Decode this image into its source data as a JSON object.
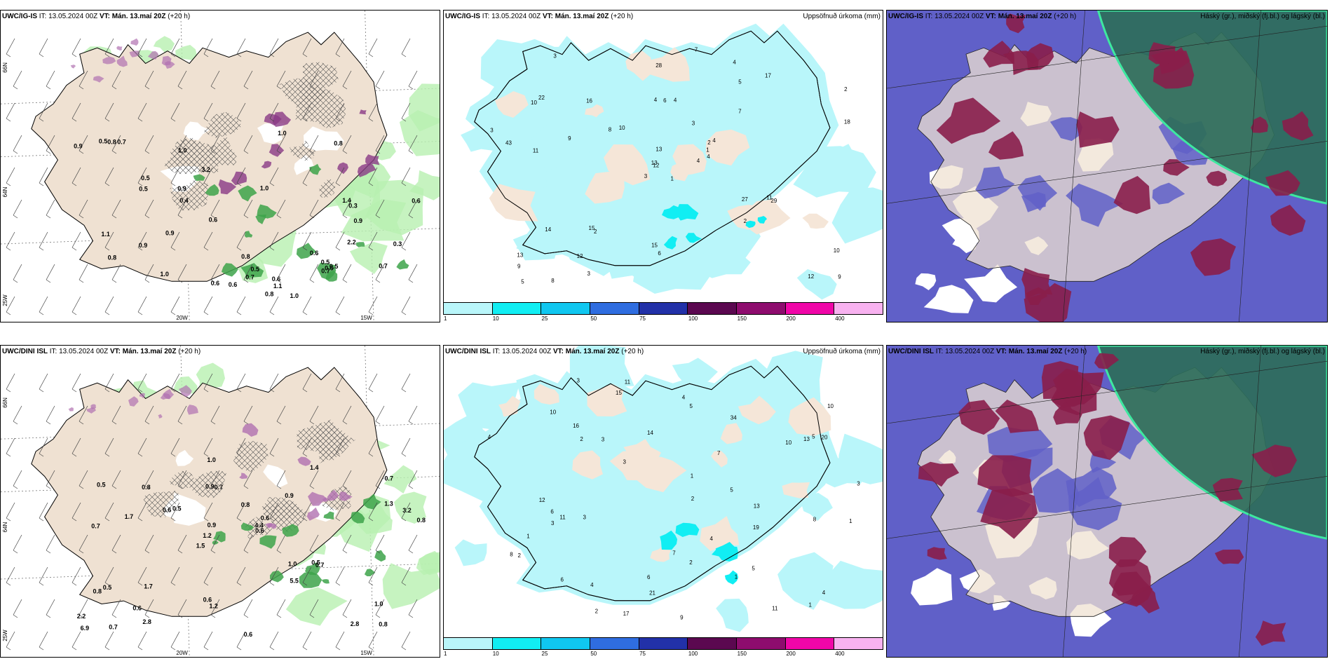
{
  "rows": [
    {
      "panels": [
        {
          "model": "UWC/IG-IS",
          "it_label": "IT: 13.05.2024 00Z",
          "vt_label": "VT: Mán. 13.maí 20Z",
          "lead": "(+20 h)",
          "right_title": "",
          "kind": "precip"
        },
        {
          "model": "UWC/IG-IS",
          "it_label": "IT: 13.05.2024 00Z",
          "vt_label": "VT: Mán. 13.maí 20Z",
          "lead": "(+20 h)",
          "right_title": "Uppsöfnuð úrkoma (mm)",
          "kind": "accum"
        },
        {
          "model": "UWC/IG-IS",
          "it_label": "IT: 13.05.2024 00Z",
          "vt_label": "VT: Mán. 13.maí 20Z",
          "lead": "(+20 h)",
          "right_title": "Háský (gr.), miðský (fj.bl.) og lágský (bl.)",
          "kind": "cloud"
        }
      ]
    },
    {
      "panels": [
        {
          "model": "UWC/DINI ISL",
          "it_label": "IT: 13.05.2024 00Z",
          "vt_label": "VT: Mán. 13.maí 20Z",
          "lead": "(+20 h)",
          "right_title": "",
          "kind": "precip"
        },
        {
          "model": "UWC/DINI ISL",
          "it_label": "IT: 13.05.2024 00Z",
          "vt_label": "VT: Mán. 13.maí 20Z",
          "lead": "(+20 h)",
          "right_title": "Uppsöfnuð úrkoma (mm)",
          "kind": "accum"
        },
        {
          "model": "UWC/DINI ISL",
          "it_label": "IT: 13.05.2024 00Z",
          "vt_label": "VT: Mán. 13.maí 20Z",
          "lead": "(+20 h)",
          "right_title": "Háský (gr.), miðský (fj.bl.) og lágský (bl.)",
          "kind": "cloud"
        }
      ]
    }
  ],
  "axis_labels": {
    "lon": [
      "20W",
      "15W"
    ],
    "lat_left": [
      "66N",
      "64N",
      "25W"
    ]
  },
  "legend": {
    "labels": [
      "1",
      "10",
      "25",
      "50",
      "75",
      "100",
      "150",
      "200",
      "400"
    ],
    "colors": [
      "#b9f6fa",
      "#11eef3",
      "#10c7f0",
      "#2f6de0",
      "#2231a8",
      "#5b0850",
      "#8e0c6e",
      "#f006a8",
      "#f8b2f0"
    ]
  },
  "precip_top_values": [
    "0.6",
    "0.5",
    "1.0",
    "0.9",
    "0.6",
    "0.8",
    "0.7",
    "1.1",
    "1.4",
    "0.5",
    "0.9",
    "0.7",
    "0.6",
    "1.0",
    "0.8",
    "1.1",
    "0.5",
    "0.6",
    "0.3",
    "0.3",
    "0.7",
    "0.9",
    "0.5",
    "0.4",
    "0.6",
    "1.0",
    "1.0",
    "0.8",
    "1.0",
    "0.9",
    "0.5",
    "0.6",
    "2.2",
    "0.8",
    "0.7",
    "3.2",
    "0.8",
    "0.5",
    "0.6",
    "0.9"
  ],
  "precip_bottom_values": [
    "0.8",
    "0.7",
    "0.7",
    "1.5",
    "0.9",
    "0.7",
    "0.9",
    "0.8",
    "0.5",
    "0.5",
    "2.2",
    "0.6",
    "0.7",
    "0.6",
    "0.7",
    "0.5",
    "1.0",
    "0.8",
    "1.0",
    "1.3",
    "1.2",
    "0.6",
    "0.9",
    "0.8",
    "1.4",
    "1.7",
    "2.8",
    "1.0",
    "0.5",
    "0.6",
    "0.6",
    "1.7",
    "5.5",
    "2.8",
    "3.2",
    "4.4",
    "6.9",
    "1.2",
    "0.6",
    "0.8"
  ],
  "accum_top_values": [
    "1",
    "10",
    "12",
    "13",
    "2",
    "2",
    "4",
    "4",
    "5",
    "4",
    "3",
    "9",
    "11",
    "2",
    "3",
    "7",
    "8",
    "4",
    "3",
    "14",
    "10",
    "9",
    "12",
    "6",
    "4",
    "29",
    "22",
    "28",
    "43",
    "27",
    "18",
    "13",
    "15",
    "13",
    "16",
    "17",
    "15",
    "12",
    "10",
    "11",
    "7",
    "8",
    "9",
    "2",
    "3",
    "3",
    "1",
    "5",
    "6",
    "4"
  ],
  "accum_bottom_values": [
    "1",
    "1",
    "10",
    "14",
    "16",
    "2",
    "1",
    "4",
    "3",
    "5",
    "4",
    "3",
    "2",
    "8",
    "11",
    "6",
    "13",
    "5",
    "2",
    "3",
    "4",
    "34",
    "21",
    "17",
    "19",
    "13",
    "15",
    "11",
    "6",
    "5",
    "12",
    "10",
    "4",
    "3",
    "7",
    "20",
    "11",
    "9",
    "8",
    "2",
    "3",
    "1",
    "2",
    "6",
    "3",
    "5",
    "4",
    "10",
    "1",
    "7"
  ]
}
